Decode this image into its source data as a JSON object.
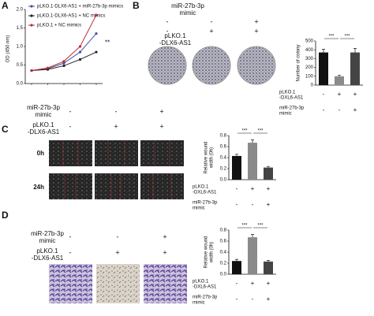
{
  "panel_letters": [
    "A",
    "B",
    "C",
    "D"
  ],
  "chart_data": [
    {
      "type": "line",
      "ylabel": "OD (450 nm)",
      "categories": [
        null,
        null,
        null,
        null,
        null
      ],
      "series": [
        {
          "name": "pLKO.1-DLX6-AS1 + miR-27b-3p mimics",
          "color": "#3b4fa3",
          "values": [
            0.35,
            0.4,
            0.55,
            0.85,
            1.35
          ]
        },
        {
          "name": "pLKO.1-DLX6-AS1 + NC mimics",
          "color": "#222222",
          "values": [
            0.35,
            0.38,
            0.48,
            0.65,
            0.85
          ]
        },
        {
          "name": "pLKO.1 + NC mimics",
          "color": "#c0282d",
          "values": [
            0.35,
            0.42,
            0.6,
            1.0,
            1.85
          ]
        }
      ],
      "ylim": [
        0,
        2
      ],
      "yticks": [
        {
          "value": 0,
          "label": "0.0"
        },
        0.5,
        {
          "value": 1,
          "label": "1.0"
        },
        1.5,
        {
          "value": 2,
          "label": "2.0"
        }
      ],
      "annotation": "**"
    },
    {
      "type": "bar",
      "ylabel": [
        "Number of colony"
      ],
      "values": [
        370,
        100,
        370
      ],
      "errors": [
        35,
        12,
        45
      ],
      "colors": [
        "#111111",
        "#8a8a8a",
        "#444444"
      ],
      "ylim": [
        0,
        500
      ],
      "yticks": [
        0,
        100,
        200,
        300,
        400,
        500
      ],
      "significance": [
        "***",
        "***"
      ],
      "conditions": [
        {
          "label": [
            "pLKO.1",
            "-DXL6-AS1"
          ],
          "signs": [
            "-",
            "+",
            "+"
          ]
        },
        {
          "label": [
            "miR-27b-3p",
            "mimic"
          ],
          "signs": [
            "-",
            "-",
            "+"
          ]
        }
      ]
    },
    {
      "type": "bar",
      "ylabel": [
        "Relative wound",
        "width (0h)"
      ],
      "values": [
        0.43,
        0.67,
        0.22
      ],
      "errors": [
        0.03,
        0.05,
        0.02
      ],
      "colors": [
        "#111111",
        "#8a8a8a",
        "#444444"
      ],
      "ylim": [
        0,
        0.8
      ],
      "yticks": [
        {
          "value": 0,
          "label": "0.0"
        },
        0.2,
        0.4,
        0.6,
        0.8
      ],
      "significance": [
        "***",
        "***"
      ],
      "conditions": [
        {
          "label": [
            "pLKO.1",
            "-DXL6-AS1"
          ],
          "signs": [
            "-",
            "+",
            "+"
          ]
        },
        {
          "label": [
            "miR-27b-3p",
            "mimic"
          ],
          "signs": [
            "-",
            "-",
            "+"
          ]
        }
      ]
    },
    {
      "type": "bar",
      "ylabel": [
        "Relative wound",
        "width (0h)"
      ],
      "values": [
        0.24,
        0.67,
        0.23
      ],
      "errors": [
        0.03,
        0.05,
        0.02
      ],
      "colors": [
        "#111111",
        "#8a8a8a",
        "#444444"
      ],
      "ylim": [
        0,
        0.8
      ],
      "yticks": [
        {
          "value": 0,
          "label": "0.0"
        },
        0.2,
        0.4,
        0.6,
        0.8
      ],
      "significance": [
        "***",
        "***"
      ],
      "conditions": [
        {
          "label": [
            "pLKO.1",
            "-DXL6-AS1"
          ],
          "signs": [
            "-",
            "+",
            "+"
          ]
        },
        {
          "label": [
            "miR-27b-3p",
            "mimic"
          ],
          "signs": [
            "-",
            "-",
            "+"
          ]
        }
      ]
    }
  ],
  "photos": {
    "B": {
      "conditions": [
        {
          "label": [
            "miR-27b-3p",
            "mimic"
          ],
          "signs": [
            "-",
            "-",
            "+"
          ]
        },
        {
          "label": [
            "pLKO.1",
            "-DLX6-AS1"
          ],
          "signs": [
            "-",
            "+",
            "+"
          ]
        }
      ]
    },
    "C": {
      "conditions": [
        {
          "label": [
            "miR-27b-3p",
            "mimic"
          ],
          "signs": [
            "-",
            "-",
            "+"
          ]
        },
        {
          "label": [
            "pLKO.1",
            "-DLX6-AS1"
          ],
          "signs": [
            "-",
            "+",
            "+"
          ]
        }
      ],
      "rows": [
        "0h",
        "24h"
      ]
    },
    "D": {
      "conditions": [
        {
          "label": [
            "miR-27b-3p",
            "mimic"
          ],
          "signs": [
            "-",
            "-",
            "+"
          ]
        },
        {
          "label": [
            "pLKO.1",
            "-DLX6-AS1"
          ],
          "signs": [
            "-",
            "+",
            "+"
          ]
        }
      ]
    }
  }
}
